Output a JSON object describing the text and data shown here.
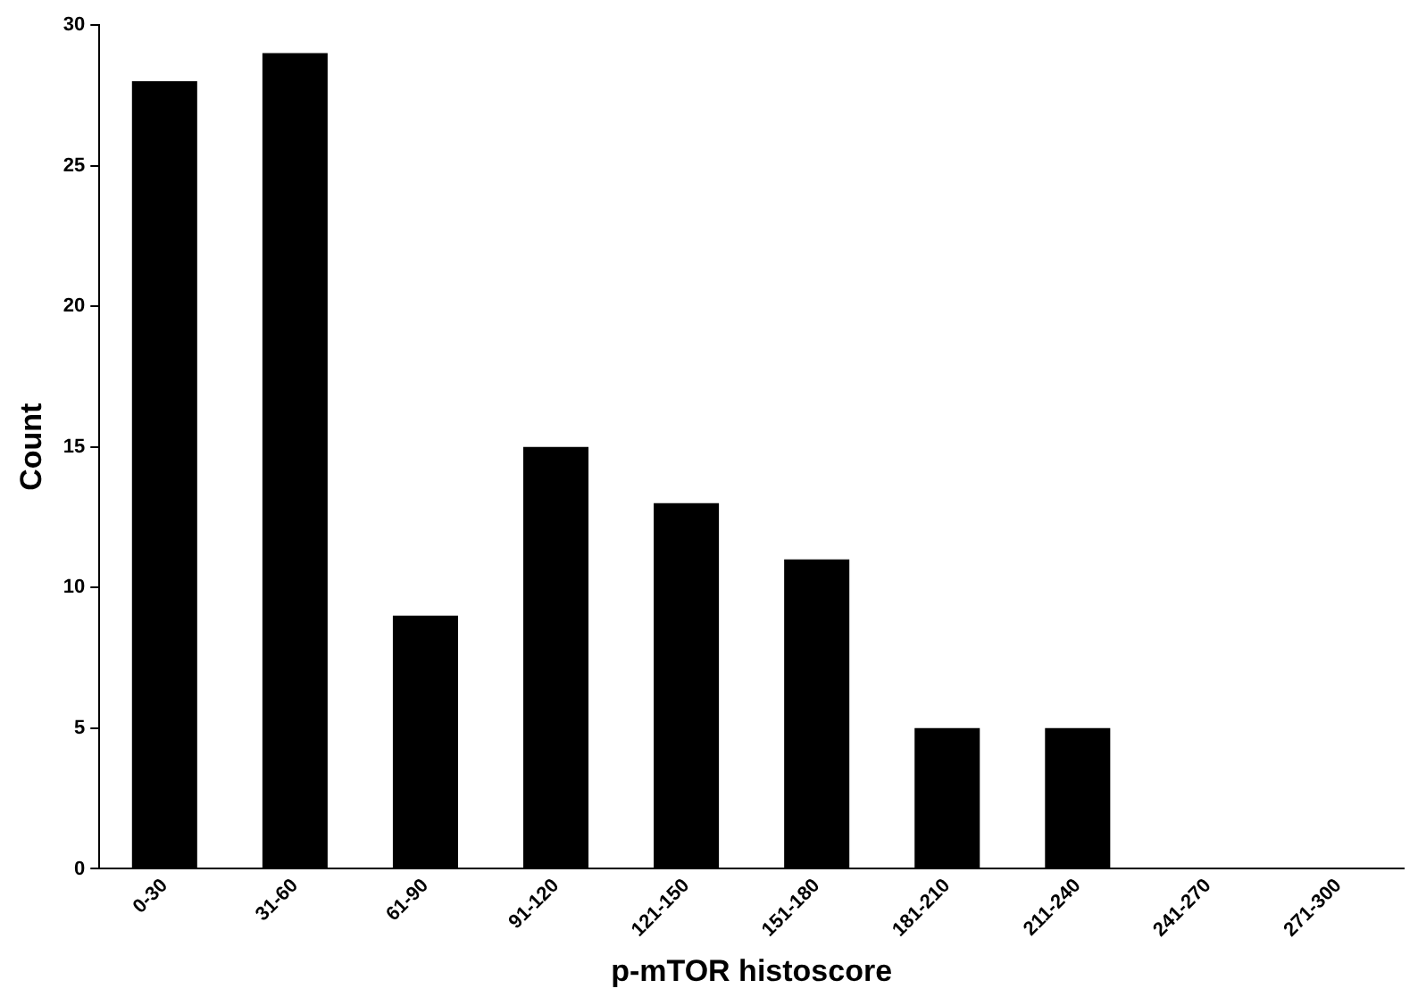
{
  "chart_data": {
    "type": "bar",
    "xlabel": "p-mTOR histoscore",
    "ylabel": "Count",
    "categories": [
      "0-30",
      "31-60",
      "61-90",
      "91-120",
      "121-150",
      "151-180",
      "181-210",
      "211-240",
      "241-270",
      "271-300"
    ],
    "values": [
      28,
      29,
      9,
      15,
      13,
      11,
      5,
      5,
      0,
      0
    ],
    "color": "#000000",
    "ylim": [
      0,
      30
    ],
    "yticks": [
      0,
      5,
      10,
      15,
      20,
      25,
      30
    ],
    "grid": false,
    "legend": false
  }
}
